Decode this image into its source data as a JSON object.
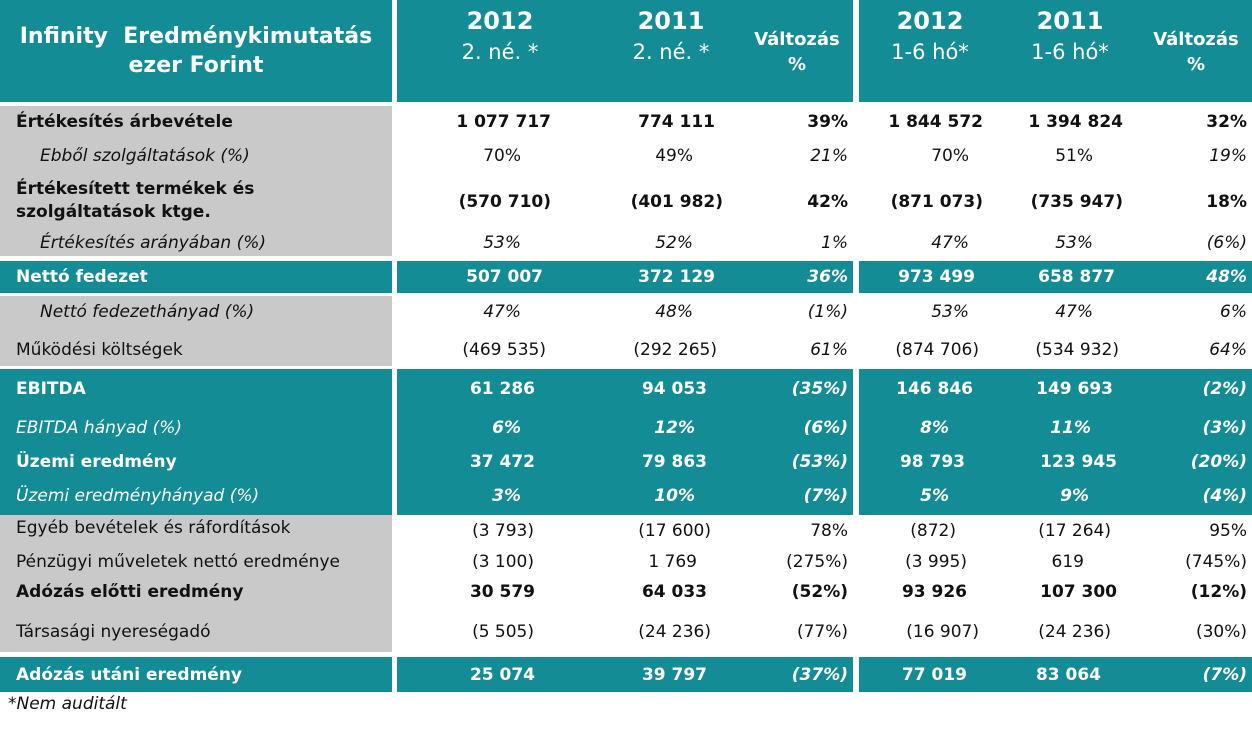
{
  "header": {
    "title_line1": "Infinity  Eredménykimutatás",
    "title_line2": "ezer Forint",
    "col1_year": "2012",
    "col1_sub": "2. né. *",
    "col2_year": "2011",
    "col2_sub": "2. né. *",
    "col3_line1": "Változás",
    "col3_line2": "%",
    "col4_year": "2012",
    "col4_sub": "1-6 hó*",
    "col5_year": "2011",
    "col5_sub": "1-6 hó*",
    "col6_line1": "Változás",
    "col6_line2": "%"
  },
  "rows": [
    {
      "label": "Értékesítés árbevétele",
      "values": [
        "1 077 717",
        "774 111",
        "39%",
        "1 844 572",
        "1 394 824",
        "32%"
      ]
    },
    {
      "label": "Ebből szolgáltatások (%)",
      "values": [
        "70%",
        "49%",
        "21%",
        "70%",
        "51%",
        "19%"
      ]
    },
    {
      "label_line1": "Értékesített termékek és",
      "label_line2": "szolgáltatások ktge.",
      "values": [
        "(570 710)",
        "(401 982)",
        "42%",
        "(871 073)",
        "(735 947)",
        "18%"
      ]
    },
    {
      "label": "Értékesítés arányában (%)",
      "values": [
        "53%",
        "52%",
        "1%",
        "47%",
        "53%",
        "(6%)"
      ]
    },
    {
      "label": "Nettó fedezet",
      "values": [
        "507 007",
        "372 129",
        "36%",
        "973 499",
        "658 877",
        "48%"
      ]
    },
    {
      "label": "Nettó fedezethányad (%)",
      "values": [
        "47%",
        "48%",
        "(1%)",
        "53%",
        "47%",
        "6%"
      ]
    },
    {
      "label": "Működési költségek",
      "values": [
        "(469 535)",
        "(292 265)",
        "61%",
        "(874 706)",
        "(534 932)",
        "64%"
      ]
    },
    {
      "label": "EBITDA",
      "values": [
        "61 286",
        "94 053",
        "(35%)",
        "146 846",
        "149 693",
        "(2%)"
      ]
    },
    {
      "label": "EBITDA hányad (%)",
      "values": [
        "6%",
        "12%",
        "(6%)",
        "8%",
        "11%",
        "(3%)"
      ]
    },
    {
      "label": "Üzemi eredmény",
      "values": [
        "37 472",
        "79 863",
        "(53%)",
        "98 793",
        "123 945",
        "(20%)"
      ]
    },
    {
      "label": "Üzemi eredményhányad (%)",
      "values": [
        "3%",
        "10%",
        "(7%)",
        "5%",
        "9%",
        "(4%)"
      ]
    },
    {
      "label": "Egyéb bevételek és ráfordítások",
      "values": [
        "(3 793)",
        "(17 600)",
        "78%",
        "(872)",
        "(17 264)",
        "95%"
      ]
    },
    {
      "label": "Pénzügyi műveletek nettó eredménye",
      "values": [
        "(3 100)",
        "1 769",
        "(275%)",
        "(3 995)",
        "619",
        "(745%)"
      ]
    },
    {
      "label": "Adózás előtti eredmény",
      "values": [
        "30 579",
        "64 033",
        "(52%)",
        "93 926",
        "107 300",
        "(12%)"
      ]
    },
    {
      "label": "Társasági nyereségadó",
      "values": [
        "(5 505)",
        "(24 236)",
        "(77%)",
        "(16 907)",
        "(24 236)",
        "(30%)"
      ]
    },
    {
      "label": "Adózás utáni eredmény",
      "values": [
        "25 074",
        "39 797",
        "(37%)",
        "77 019",
        "83 064",
        "(7%)"
      ]
    }
  ],
  "footnote": "*Nem auditált",
  "colors": {
    "teal": "#138c95",
    "grey": "#c9c9c9"
  }
}
